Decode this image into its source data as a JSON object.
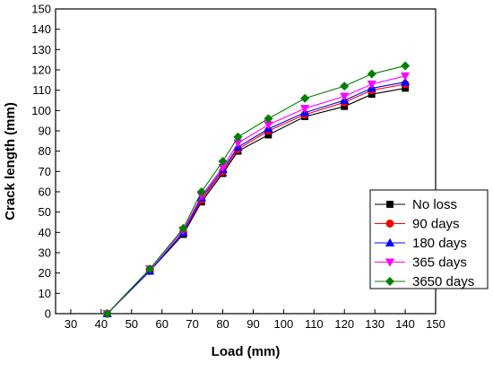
{
  "chart_data": {
    "type": "line",
    "xlabel": "Load (mm)",
    "ylabel": "Crack length (mm)",
    "xlim": [
      25,
      150
    ],
    "ylim": [
      0,
      150
    ],
    "xticks": [
      30,
      40,
      50,
      60,
      70,
      80,
      90,
      100,
      110,
      120,
      130,
      140,
      150
    ],
    "yticks": [
      0,
      10,
      20,
      30,
      40,
      50,
      60,
      70,
      80,
      90,
      100,
      110,
      120,
      130,
      140,
      150
    ],
    "grid": false,
    "legend_position": "bottom-right",
    "series": [
      {
        "name": "No loss",
        "color": "#000000",
        "marker": "square",
        "x": [
          42,
          56,
          67,
          73,
          80,
          85,
          95,
          107,
          120,
          129,
          140
        ],
        "y": [
          0,
          21,
          39,
          55,
          69,
          80,
          88,
          97,
          102,
          108,
          111
        ]
      },
      {
        "name": "90 days",
        "color": "#ff0000",
        "marker": "circle",
        "x": [
          42,
          56,
          67,
          73,
          80,
          85,
          95,
          107,
          120,
          129,
          140
        ],
        "y": [
          0,
          21,
          40,
          56,
          70,
          81,
          90,
          98,
          104,
          110,
          113
        ]
      },
      {
        "name": "180 days",
        "color": "#0000ff",
        "marker": "triangle-up",
        "x": [
          42,
          56,
          67,
          73,
          80,
          85,
          95,
          107,
          120,
          129,
          140
        ],
        "y": [
          0,
          21,
          40,
          57,
          71,
          82,
          91,
          99,
          105,
          111,
          114
        ]
      },
      {
        "name": "365 days",
        "color": "#ff00ff",
        "marker": "triangle-down",
        "x": [
          42,
          56,
          67,
          73,
          80,
          85,
          95,
          107,
          120,
          129,
          140
        ],
        "y": [
          0,
          22,
          41,
          58,
          72,
          84,
          93,
          101,
          107,
          113,
          117
        ]
      },
      {
        "name": "3650 days",
        "color": "#008000",
        "marker": "diamond",
        "x": [
          42,
          56,
          67,
          73,
          80,
          85,
          95,
          107,
          120,
          129,
          140
        ],
        "y": [
          0,
          22,
          42,
          60,
          75,
          87,
          96,
          106,
          112,
          118,
          122
        ]
      }
    ]
  }
}
